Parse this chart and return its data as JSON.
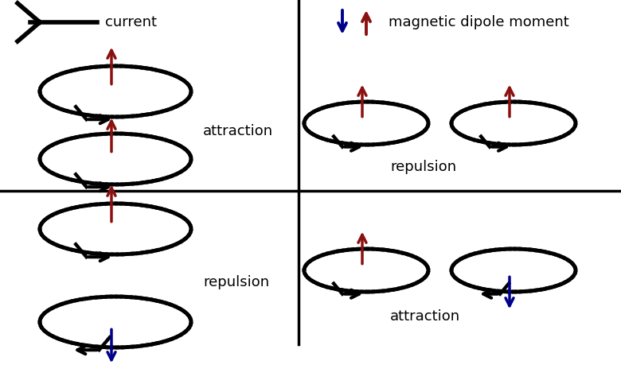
{
  "bg_color": "#ffffff",
  "dark_color": "#000000",
  "red_color": "#8B1010",
  "blue_color": "#00008B",
  "label_current": "current",
  "label_dipole": "magnetic dipole moment",
  "label_attraction_tl": "attraction",
  "label_repulsion_tr": "repulsion",
  "label_repulsion_bl": "repulsion",
  "label_attraction_br": "attraction",
  "divider_vx": 375,
  "divider_hy": 248,
  "fig_w": 7.8,
  "fig_h": 4.88,
  "dpi": 100
}
